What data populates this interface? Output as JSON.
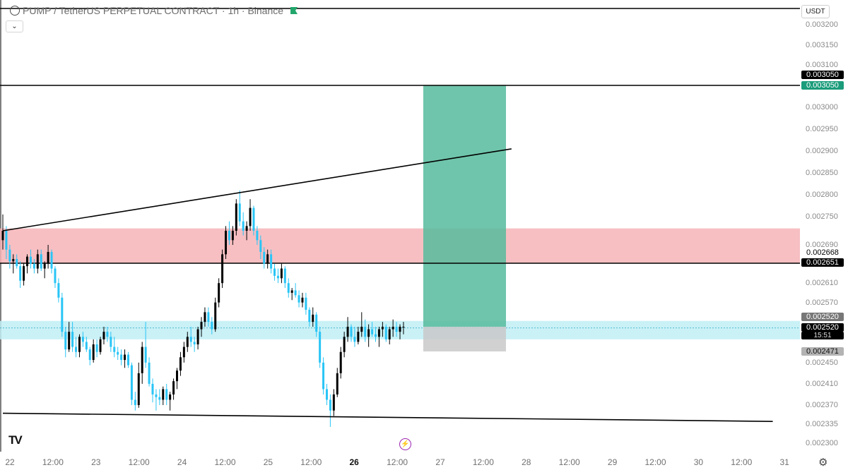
{
  "header": {
    "symbol_title": "PUMP / TetherUS PERPETUAL CONTRACT · 1h · Binance"
  },
  "controls": {
    "collapse_icon": "chevron-down-icon",
    "currency": "USDT",
    "settings_icon": "gear-icon"
  },
  "price_axis": {
    "ticks": [
      "0.003200",
      "0.003150",
      "0.003100",
      "0.003000",
      "0.002950",
      "0.002900",
      "0.002850",
      "0.002800",
      "0.002750",
      "0.002690",
      "0.002610",
      "0.002570",
      "0.002450",
      "0.002410",
      "0.002370",
      "0.002335",
      "0.002300"
    ]
  },
  "price_tags": {
    "tp_top": "0.003050",
    "tp_bottom": "0.003050",
    "level_2668": "0.002668",
    "level_2651": "0.002651",
    "current_a": "0.002520",
    "current_b": "0.002520",
    "countdown": "15:51",
    "stop": "0.002471"
  },
  "time_axis": {
    "ticks": [
      "22",
      "12:00",
      "23",
      "12:00",
      "24",
      "12:00",
      "25",
      "12:00",
      "26",
      "12:00",
      "27",
      "12:00",
      "28",
      "12:00",
      "29",
      "12:00",
      "30",
      "12:00",
      "31"
    ],
    "bold_index": 8
  },
  "colors": {
    "up_candle": "#000000",
    "down_candle": "#29c5f6",
    "profit_zone": "#56bb9c",
    "loss_zone": "#c9c9c9",
    "resistance_zone": "#f6b4b7",
    "support_zone": "#bfeef5",
    "tp_tag": "#1b9c7b",
    "dark_tag": "#000000",
    "grey_tag": "#777777",
    "stop_tag": "#b3b3b3"
  },
  "chart_data": {
    "type": "candlestick",
    "title": "PUMP / TetherUS PERPETUAL CONTRACT · 1h · Binance",
    "x_range": [
      "22",
      "31"
    ],
    "y_range": [
      0.0023,
      0.0032
    ],
    "candles": [
      {
        "o": 0.0027,
        "h": 0.002755,
        "l": 0.00268,
        "c": 0.00272
      },
      {
        "o": 0.00272,
        "h": 0.00273,
        "l": 0.00266,
        "c": 0.00268
      },
      {
        "o": 0.00268,
        "h": 0.00269,
        "l": 0.00264,
        "c": 0.002655
      },
      {
        "o": 0.002655,
        "h": 0.00267,
        "l": 0.00263,
        "c": 0.00266
      },
      {
        "o": 0.00266,
        "h": 0.00267,
        "l": 0.00264,
        "c": 0.002645
      },
      {
        "o": 0.002645,
        "h": 0.002655,
        "l": 0.0026,
        "c": 0.002615
      },
      {
        "o": 0.002615,
        "h": 0.00265,
        "l": 0.002605,
        "c": 0.002645
      },
      {
        "o": 0.002645,
        "h": 0.00267,
        "l": 0.00263,
        "c": 0.002665
      },
      {
        "o": 0.002665,
        "h": 0.00268,
        "l": 0.00264,
        "c": 0.00265
      },
      {
        "o": 0.00265,
        "h": 0.00266,
        "l": 0.00263,
        "c": 0.00264
      },
      {
        "o": 0.00264,
        "h": 0.00268,
        "l": 0.00263,
        "c": 0.00267
      },
      {
        "o": 0.00267,
        "h": 0.00268,
        "l": 0.002635,
        "c": 0.00264
      },
      {
        "o": 0.00264,
        "h": 0.002655,
        "l": 0.00262,
        "c": 0.00265
      },
      {
        "o": 0.00265,
        "h": 0.00269,
        "l": 0.00264,
        "c": 0.002675
      },
      {
        "o": 0.002675,
        "h": 0.00268,
        "l": 0.00263,
        "c": 0.00264
      },
      {
        "o": 0.00264,
        "h": 0.002645,
        "l": 0.0026,
        "c": 0.00261
      },
      {
        "o": 0.00261,
        "h": 0.00262,
        "l": 0.00257,
        "c": 0.00258
      },
      {
        "o": 0.00258,
        "h": 0.00259,
        "l": 0.0025,
        "c": 0.00251
      },
      {
        "o": 0.00251,
        "h": 0.00252,
        "l": 0.00246,
        "c": 0.002475
      },
      {
        "o": 0.002475,
        "h": 0.00253,
        "l": 0.00247,
        "c": 0.00251
      },
      {
        "o": 0.00251,
        "h": 0.00253,
        "l": 0.00247,
        "c": 0.00248
      },
      {
        "o": 0.00248,
        "h": 0.0025,
        "l": 0.00246,
        "c": 0.00247
      },
      {
        "o": 0.00247,
        "h": 0.002505,
        "l": 0.00246,
        "c": 0.0025
      },
      {
        "o": 0.0025,
        "h": 0.00251,
        "l": 0.00248,
        "c": 0.00249
      },
      {
        "o": 0.00249,
        "h": 0.0025,
        "l": 0.00247,
        "c": 0.002475
      },
      {
        "o": 0.002475,
        "h": 0.00248,
        "l": 0.002445,
        "c": 0.002455
      },
      {
        "o": 0.002455,
        "h": 0.002495,
        "l": 0.00245,
        "c": 0.002485
      },
      {
        "o": 0.002485,
        "h": 0.002495,
        "l": 0.00246,
        "c": 0.00247
      },
      {
        "o": 0.00247,
        "h": 0.0025,
        "l": 0.002465,
        "c": 0.002495
      },
      {
        "o": 0.002495,
        "h": 0.00252,
        "l": 0.002485,
        "c": 0.00251
      },
      {
        "o": 0.00251,
        "h": 0.00252,
        "l": 0.00249,
        "c": 0.0025
      },
      {
        "o": 0.0025,
        "h": 0.00251,
        "l": 0.00247,
        "c": 0.00248
      },
      {
        "o": 0.00248,
        "h": 0.0025,
        "l": 0.00246,
        "c": 0.00247
      },
      {
        "o": 0.00247,
        "h": 0.00248,
        "l": 0.002455,
        "c": 0.002465
      },
      {
        "o": 0.002465,
        "h": 0.002475,
        "l": 0.002445,
        "c": 0.002455
      },
      {
        "o": 0.002455,
        "h": 0.002475,
        "l": 0.00244,
        "c": 0.002465
      },
      {
        "o": 0.002465,
        "h": 0.00247,
        "l": 0.00244,
        "c": 0.002445
      },
      {
        "o": 0.002445,
        "h": 0.00245,
        "l": 0.00237,
        "c": 0.00238
      },
      {
        "o": 0.00238,
        "h": 0.002395,
        "l": 0.00236,
        "c": 0.00237
      },
      {
        "o": 0.00237,
        "h": 0.00245,
        "l": 0.002365,
        "c": 0.00243
      },
      {
        "o": 0.00243,
        "h": 0.00249,
        "l": 0.00241,
        "c": 0.00248
      },
      {
        "o": 0.00248,
        "h": 0.00253,
        "l": 0.00244,
        "c": 0.00245
      },
      {
        "o": 0.00245,
        "h": 0.00246,
        "l": 0.002405,
        "c": 0.00241
      },
      {
        "o": 0.00241,
        "h": 0.00242,
        "l": 0.002375,
        "c": 0.00239
      },
      {
        "o": 0.00239,
        "h": 0.0024,
        "l": 0.00236,
        "c": 0.002385
      },
      {
        "o": 0.002385,
        "h": 0.0024,
        "l": 0.00237,
        "c": 0.00238
      },
      {
        "o": 0.00238,
        "h": 0.002405,
        "l": 0.00237,
        "c": 0.0024
      },
      {
        "o": 0.0024,
        "h": 0.00241,
        "l": 0.00237,
        "c": 0.00238
      },
      {
        "o": 0.00238,
        "h": 0.002395,
        "l": 0.00236,
        "c": 0.00239
      },
      {
        "o": 0.00239,
        "h": 0.00242,
        "l": 0.00238,
        "c": 0.002415
      },
      {
        "o": 0.002415,
        "h": 0.00244,
        "l": 0.0024,
        "c": 0.002435
      },
      {
        "o": 0.002435,
        "h": 0.00247,
        "l": 0.002425,
        "c": 0.00246
      },
      {
        "o": 0.00246,
        "h": 0.00249,
        "l": 0.00245,
        "c": 0.00248
      },
      {
        "o": 0.00248,
        "h": 0.00251,
        "l": 0.00247,
        "c": 0.0025
      },
      {
        "o": 0.0025,
        "h": 0.00252,
        "l": 0.00248,
        "c": 0.00249
      },
      {
        "o": 0.00249,
        "h": 0.0025,
        "l": 0.00247,
        "c": 0.002485
      },
      {
        "o": 0.002485,
        "h": 0.00252,
        "l": 0.002475,
        "c": 0.002515
      },
      {
        "o": 0.002515,
        "h": 0.00254,
        "l": 0.0025,
        "c": 0.00253
      },
      {
        "o": 0.00253,
        "h": 0.00256,
        "l": 0.00252,
        "c": 0.00255
      },
      {
        "o": 0.00255,
        "h": 0.00256,
        "l": 0.00252,
        "c": 0.00253
      },
      {
        "o": 0.00253,
        "h": 0.00254,
        "l": 0.002505,
        "c": 0.002515
      },
      {
        "o": 0.002515,
        "h": 0.00258,
        "l": 0.00251,
        "c": 0.00257
      },
      {
        "o": 0.00257,
        "h": 0.00262,
        "l": 0.00256,
        "c": 0.00261
      },
      {
        "o": 0.00261,
        "h": 0.00268,
        "l": 0.0026,
        "c": 0.00267
      },
      {
        "o": 0.00267,
        "h": 0.00273,
        "l": 0.00266,
        "c": 0.00272
      },
      {
        "o": 0.00272,
        "h": 0.00274,
        "l": 0.00269,
        "c": 0.0027
      },
      {
        "o": 0.0027,
        "h": 0.00273,
        "l": 0.00269,
        "c": 0.00272
      },
      {
        "o": 0.00272,
        "h": 0.00279,
        "l": 0.00271,
        "c": 0.00278
      },
      {
        "o": 0.00278,
        "h": 0.00281,
        "l": 0.00273,
        "c": 0.00274
      },
      {
        "o": 0.00274,
        "h": 0.00276,
        "l": 0.00271,
        "c": 0.00272
      },
      {
        "o": 0.00272,
        "h": 0.00274,
        "l": 0.0027,
        "c": 0.00273
      },
      {
        "o": 0.00273,
        "h": 0.00279,
        "l": 0.00272,
        "c": 0.00277
      },
      {
        "o": 0.00277,
        "h": 0.002775,
        "l": 0.00271,
        "c": 0.00272
      },
      {
        "o": 0.00272,
        "h": 0.00273,
        "l": 0.00269,
        "c": 0.0027
      },
      {
        "o": 0.0027,
        "h": 0.00271,
        "l": 0.00266,
        "c": 0.002675
      },
      {
        "o": 0.002675,
        "h": 0.002685,
        "l": 0.00264,
        "c": 0.00265
      },
      {
        "o": 0.00265,
        "h": 0.00268,
        "l": 0.00264,
        "c": 0.00267
      },
      {
        "o": 0.00267,
        "h": 0.00268,
        "l": 0.00263,
        "c": 0.00264
      },
      {
        "o": 0.00264,
        "h": 0.00265,
        "l": 0.002615,
        "c": 0.002625
      },
      {
        "o": 0.002625,
        "h": 0.00264,
        "l": 0.00261,
        "c": 0.00262
      },
      {
        "o": 0.00262,
        "h": 0.00265,
        "l": 0.00261,
        "c": 0.00264
      },
      {
        "o": 0.00264,
        "h": 0.002645,
        "l": 0.0026,
        "c": 0.00261
      },
      {
        "o": 0.00261,
        "h": 0.00262,
        "l": 0.00258,
        "c": 0.00259
      },
      {
        "o": 0.00259,
        "h": 0.0026,
        "l": 0.002575,
        "c": 0.002595
      },
      {
        "o": 0.002595,
        "h": 0.00261,
        "l": 0.00258,
        "c": 0.002585
      },
      {
        "o": 0.002585,
        "h": 0.002595,
        "l": 0.00256,
        "c": 0.00257
      },
      {
        "o": 0.00257,
        "h": 0.00259,
        "l": 0.00256,
        "c": 0.00258
      },
      {
        "o": 0.00258,
        "h": 0.00259,
        "l": 0.002545,
        "c": 0.002555
      },
      {
        "o": 0.002555,
        "h": 0.00256,
        "l": 0.00252,
        "c": 0.00253
      },
      {
        "o": 0.00253,
        "h": 0.00256,
        "l": 0.00252,
        "c": 0.002545
      },
      {
        "o": 0.002545,
        "h": 0.00255,
        "l": 0.0025,
        "c": 0.00251
      },
      {
        "o": 0.00251,
        "h": 0.00252,
        "l": 0.00244,
        "c": 0.00245
      },
      {
        "o": 0.00245,
        "h": 0.00246,
        "l": 0.00239,
        "c": 0.0024
      },
      {
        "o": 0.0024,
        "h": 0.00241,
        "l": 0.00237,
        "c": 0.00238
      },
      {
        "o": 0.00238,
        "h": 0.00239,
        "l": 0.00233,
        "c": 0.00236
      },
      {
        "o": 0.00236,
        "h": 0.0024,
        "l": 0.00235,
        "c": 0.00239
      },
      {
        "o": 0.00239,
        "h": 0.00244,
        "l": 0.002385,
        "c": 0.00243
      },
      {
        "o": 0.00243,
        "h": 0.00248,
        "l": 0.00242,
        "c": 0.00247
      },
      {
        "o": 0.00247,
        "h": 0.00251,
        "l": 0.00246,
        "c": 0.0025
      },
      {
        "o": 0.0025,
        "h": 0.00254,
        "l": 0.00249,
        "c": 0.00252
      },
      {
        "o": 0.00252,
        "h": 0.002525,
        "l": 0.00249,
        "c": 0.0025
      },
      {
        "o": 0.0025,
        "h": 0.00252,
        "l": 0.00248,
        "c": 0.00249
      },
      {
        "o": 0.00249,
        "h": 0.00252,
        "l": 0.002485,
        "c": 0.00251
      },
      {
        "o": 0.00251,
        "h": 0.00255,
        "l": 0.0025,
        "c": 0.00252
      },
      {
        "o": 0.00252,
        "h": 0.002535,
        "l": 0.00249,
        "c": 0.0025
      },
      {
        "o": 0.0025,
        "h": 0.002525,
        "l": 0.00248,
        "c": 0.002515
      },
      {
        "o": 0.002515,
        "h": 0.00253,
        "l": 0.0025,
        "c": 0.002505
      },
      {
        "o": 0.002505,
        "h": 0.00252,
        "l": 0.00249,
        "c": 0.0025
      },
      {
        "o": 0.0025,
        "h": 0.00252,
        "l": 0.00248,
        "c": 0.002515
      },
      {
        "o": 0.002515,
        "h": 0.00253,
        "l": 0.0025,
        "c": 0.00252
      },
      {
        "o": 0.00252,
        "h": 0.002525,
        "l": 0.00249,
        "c": 0.002495
      },
      {
        "o": 0.002495,
        "h": 0.00252,
        "l": 0.002485,
        "c": 0.002515
      },
      {
        "o": 0.002515,
        "h": 0.002535,
        "l": 0.0025,
        "c": 0.00252
      },
      {
        "o": 0.00252,
        "h": 0.00253,
        "l": 0.0025,
        "c": 0.00251
      },
      {
        "o": 0.00251,
        "h": 0.002525,
        "l": 0.002495,
        "c": 0.00252
      },
      {
        "o": 0.00252,
        "h": 0.00253,
        "l": 0.002505,
        "c": 0.00252
      }
    ],
    "horizontal_levels": [
      0.00305,
      0.002651
    ],
    "zones": {
      "resistance": [
        0.002651,
        0.002725
      ],
      "support": [
        0.002495,
        0.002532
      ],
      "long_position": {
        "entry": 0.00252,
        "target": 0.00305,
        "stop": 0.002471
      }
    },
    "trendlines": [
      {
        "from": [
          0,
          0.00272
        ],
        "to": [
          146,
          0.002905
        ]
      },
      {
        "from": [
          0,
          0.002355
        ],
        "to": [
          221,
          0.00234
        ]
      }
    ]
  }
}
